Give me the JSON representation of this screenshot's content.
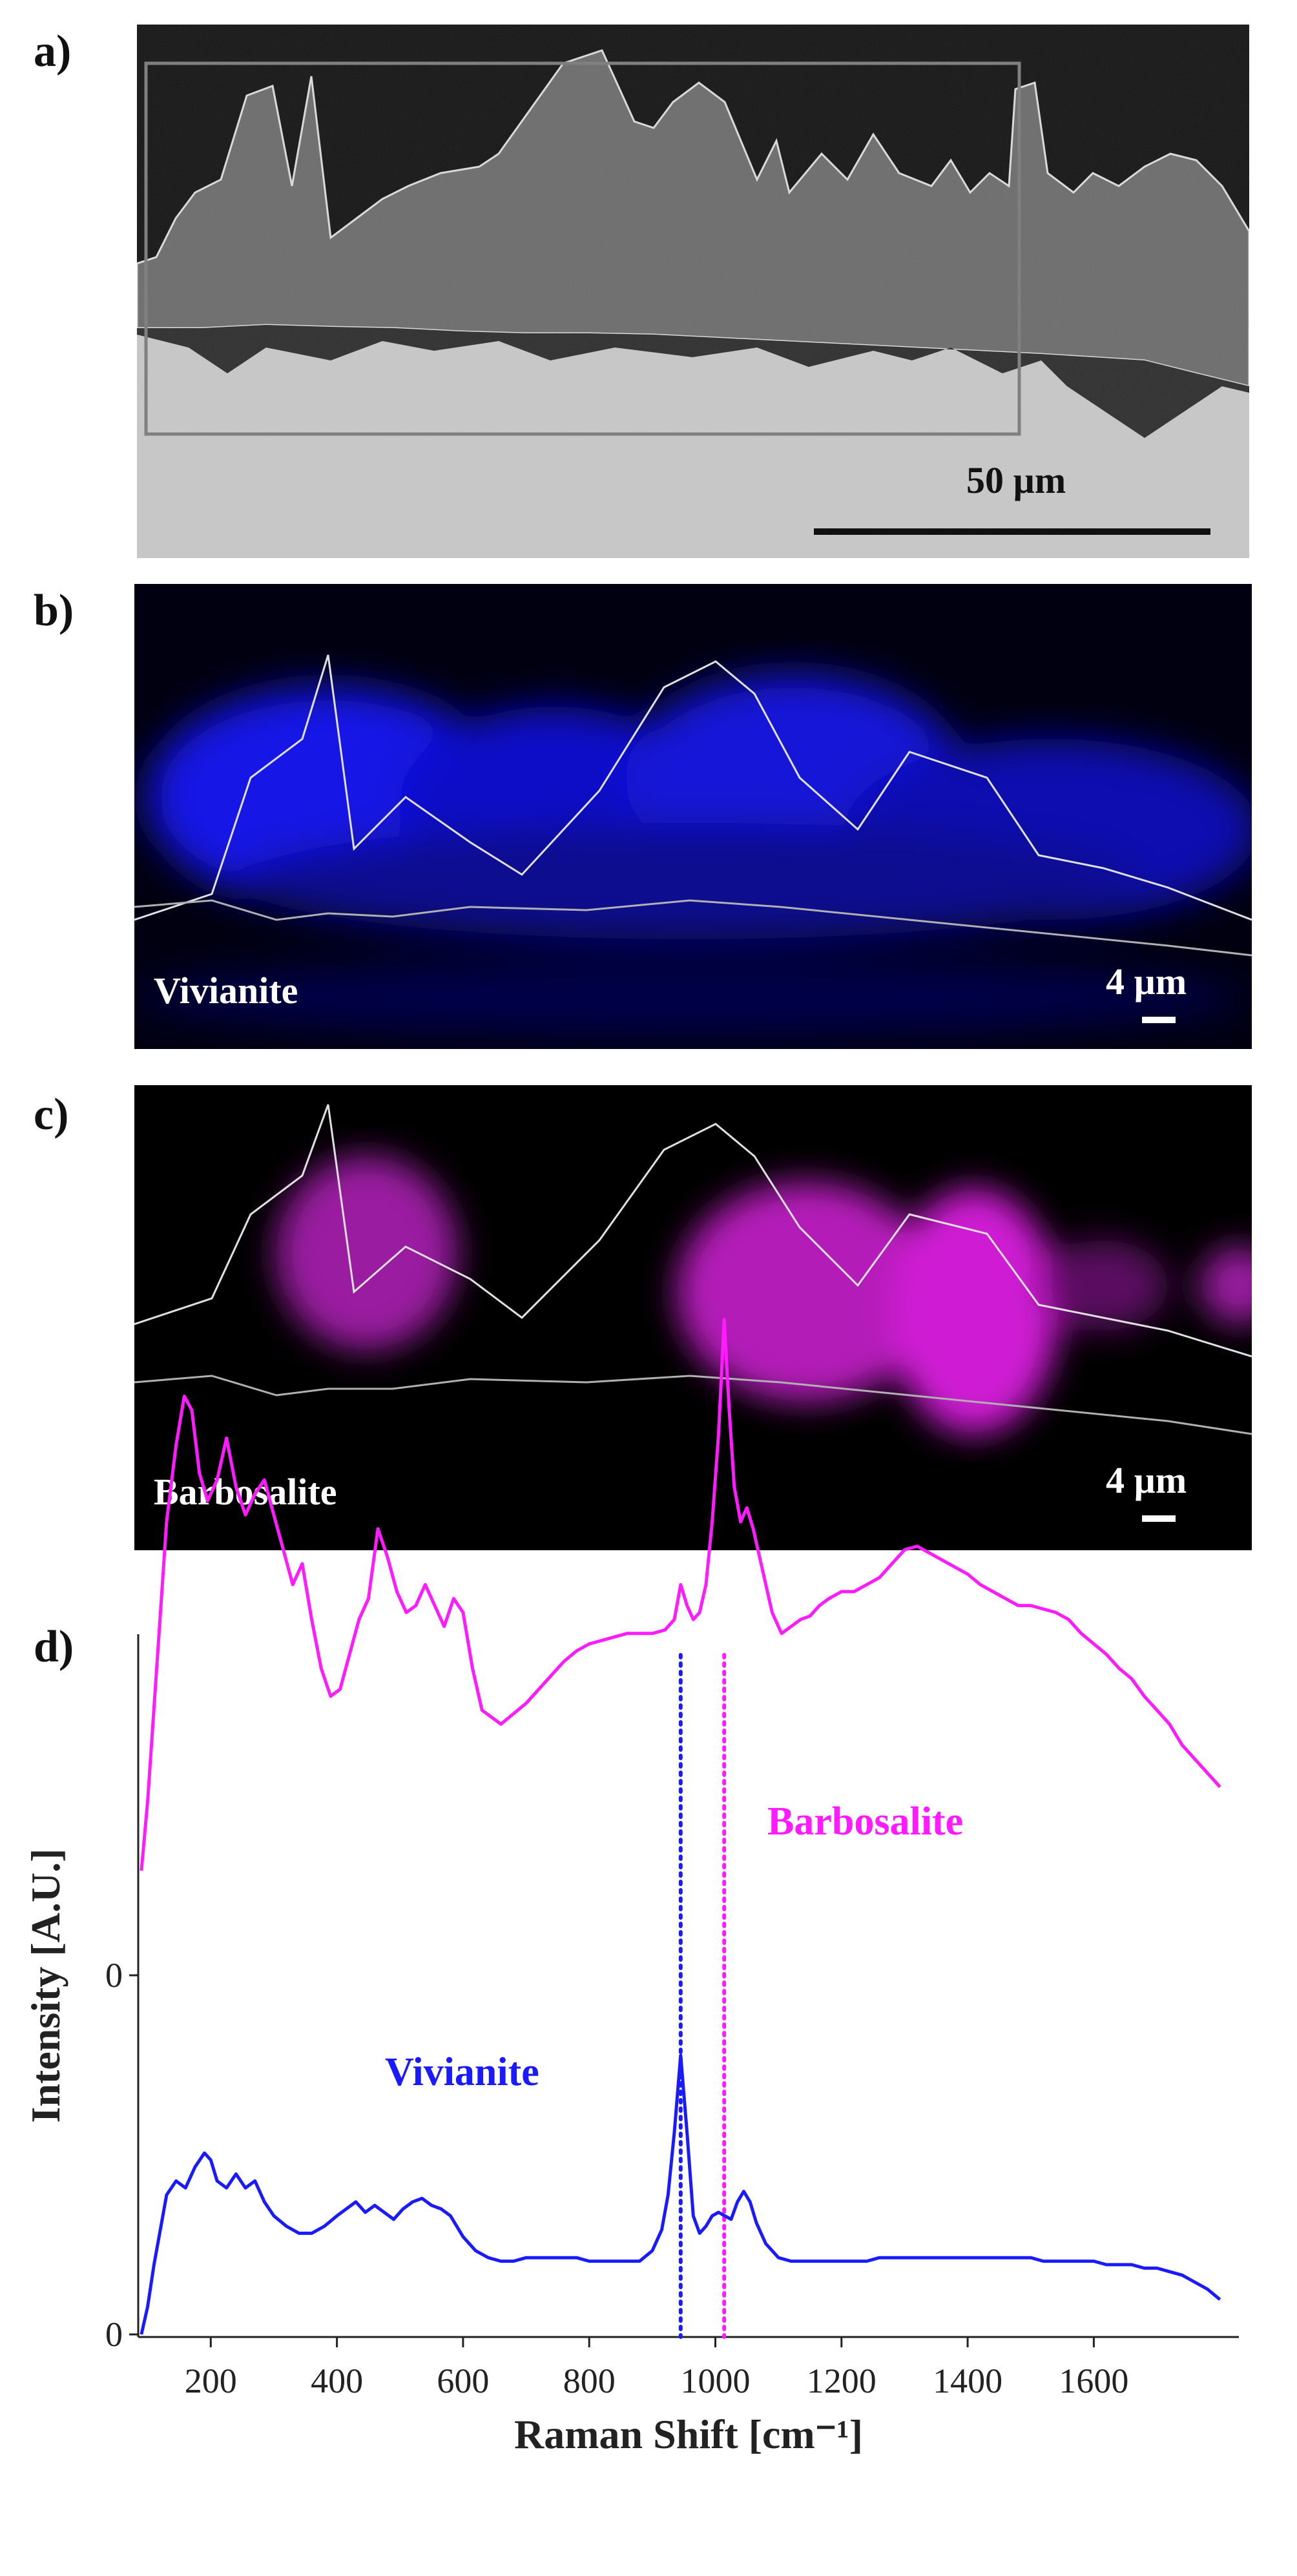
{
  "panels": [
    {
      "label": "a)",
      "scale_bar": "50 µm"
    },
    {
      "label": "b)",
      "name": "Vivianite",
      "scale_bar": "4 µm",
      "color": "#1a1aff"
    },
    {
      "label": "c)",
      "name": "Barbosalite",
      "scale_bar": "4 µm",
      "color": "#ff1aff"
    },
    {
      "label": "d)"
    }
  ],
  "chart_data": {
    "type": "line",
    "xlabel": "Raman Shift [cm⁻¹]",
    "ylabel": "Intensity [A.U.]",
    "xlim": [
      85,
      1830
    ],
    "x_ticks": [
      200,
      400,
      600,
      800,
      1000,
      1200,
      1400,
      1600
    ],
    "y_ticks": [
      "0",
      "0"
    ],
    "grid": false,
    "reference_lines": [
      {
        "x": 945,
        "color": "#1a1aff",
        "style": "dotted"
      },
      {
        "x": 1014,
        "color": "#ff1aff",
        "style": "dotted"
      }
    ],
    "series": [
      {
        "name": "Barbosalite",
        "color": "#ff1aff",
        "x": [
          90,
          100,
          115,
          130,
          145,
          158,
          170,
          182,
          195,
          210,
          225,
          240,
          255,
          270,
          285,
          300,
          315,
          330,
          345,
          360,
          375,
          390,
          405,
          420,
          435,
          450,
          465,
          480,
          495,
          510,
          525,
          540,
          555,
          570,
          585,
          600,
          615,
          630,
          645,
          660,
          680,
          700,
          720,
          740,
          760,
          780,
          800,
          820,
          840,
          860,
          880,
          900,
          920,
          935,
          945,
          955,
          965,
          975,
          985,
          995,
          1005,
          1014,
          1022,
          1030,
          1040,
          1050,
          1060,
          1075,
          1090,
          1105,
          1120,
          1135,
          1150,
          1165,
          1180,
          1200,
          1220,
          1240,
          1260,
          1280,
          1300,
          1320,
          1340,
          1360,
          1380,
          1400,
          1420,
          1440,
          1460,
          1480,
          1500,
          1520,
          1540,
          1560,
          1580,
          1600,
          1620,
          1640,
          1660,
          1680,
          1700,
          1720,
          1740,
          1760,
          1780,
          1800
        ],
        "y": [
          0.3,
          0.5,
          0.9,
          1.3,
          1.52,
          1.66,
          1.62,
          1.44,
          1.36,
          1.42,
          1.54,
          1.4,
          1.32,
          1.38,
          1.42,
          1.32,
          1.22,
          1.12,
          1.18,
          1.02,
          0.88,
          0.8,
          0.82,
          0.92,
          1.02,
          1.08,
          1.28,
          1.2,
          1.1,
          1.04,
          1.06,
          1.12,
          1.06,
          1.0,
          1.08,
          1.04,
          0.88,
          0.76,
          0.74,
          0.72,
          0.75,
          0.78,
          0.82,
          0.86,
          0.9,
          0.93,
          0.95,
          0.96,
          0.97,
          0.98,
          0.98,
          0.98,
          0.99,
          1.02,
          1.12,
          1.06,
          1.02,
          1.04,
          1.12,
          1.3,
          1.55,
          1.88,
          1.62,
          1.4,
          1.3,
          1.34,
          1.28,
          1.16,
          1.04,
          0.98,
          1.0,
          1.02,
          1.03,
          1.06,
          1.08,
          1.1,
          1.1,
          1.12,
          1.14,
          1.18,
          1.22,
          1.23,
          1.21,
          1.19,
          1.17,
          1.15,
          1.12,
          1.1,
          1.08,
          1.06,
          1.06,
          1.05,
          1.04,
          1.02,
          0.98,
          0.95,
          0.92,
          0.88,
          0.85,
          0.8,
          0.76,
          0.72,
          0.66,
          0.62,
          0.58,
          0.54
        ]
      },
      {
        "name": "Vivianite",
        "color": "#1a1aff",
        "x": [
          90,
          100,
          110,
          120,
          130,
          145,
          160,
          175,
          190,
          200,
          210,
          225,
          240,
          255,
          270,
          285,
          300,
          320,
          340,
          360,
          380,
          400,
          415,
          430,
          445,
          460,
          475,
          490,
          505,
          520,
          535,
          550,
          565,
          580,
          600,
          620,
          640,
          660,
          680,
          700,
          720,
          740,
          760,
          780,
          800,
          820,
          840,
          860,
          880,
          900,
          915,
          925,
          935,
          945,
          955,
          965,
          975,
          985,
          995,
          1005,
          1015,
          1025,
          1035,
          1045,
          1055,
          1065,
          1080,
          1100,
          1120,
          1140,
          1160,
          1180,
          1200,
          1220,
          1240,
          1260,
          1280,
          1300,
          1320,
          1340,
          1360,
          1380,
          1400,
          1420,
          1440,
          1460,
          1480,
          1500,
          1520,
          1540,
          1560,
          1580,
          1600,
          1620,
          1640,
          1660,
          1680,
          1700,
          1720,
          1740,
          1760,
          1780,
          1800
        ],
        "y": [
          0.0,
          0.08,
          0.2,
          0.3,
          0.4,
          0.44,
          0.42,
          0.48,
          0.52,
          0.5,
          0.44,
          0.42,
          0.46,
          0.42,
          0.44,
          0.38,
          0.34,
          0.31,
          0.29,
          0.29,
          0.31,
          0.34,
          0.36,
          0.38,
          0.35,
          0.37,
          0.35,
          0.33,
          0.36,
          0.38,
          0.39,
          0.37,
          0.36,
          0.34,
          0.28,
          0.24,
          0.22,
          0.21,
          0.21,
          0.22,
          0.22,
          0.22,
          0.22,
          0.22,
          0.21,
          0.21,
          0.21,
          0.21,
          0.21,
          0.24,
          0.3,
          0.4,
          0.58,
          0.8,
          0.58,
          0.34,
          0.29,
          0.31,
          0.34,
          0.35,
          0.34,
          0.33,
          0.38,
          0.41,
          0.38,
          0.32,
          0.26,
          0.22,
          0.21,
          0.21,
          0.21,
          0.21,
          0.21,
          0.21,
          0.21,
          0.22,
          0.22,
          0.22,
          0.22,
          0.22,
          0.22,
          0.22,
          0.22,
          0.22,
          0.22,
          0.22,
          0.22,
          0.22,
          0.21,
          0.21,
          0.21,
          0.21,
          0.21,
          0.2,
          0.2,
          0.2,
          0.19,
          0.19,
          0.18,
          0.17,
          0.15,
          0.13,
          0.1
        ]
      }
    ],
    "annotations": [
      {
        "text": "Barbosalite",
        "color": "#ff1aff"
      },
      {
        "text": "Vivianite",
        "color": "#1a1aff"
      }
    ]
  }
}
